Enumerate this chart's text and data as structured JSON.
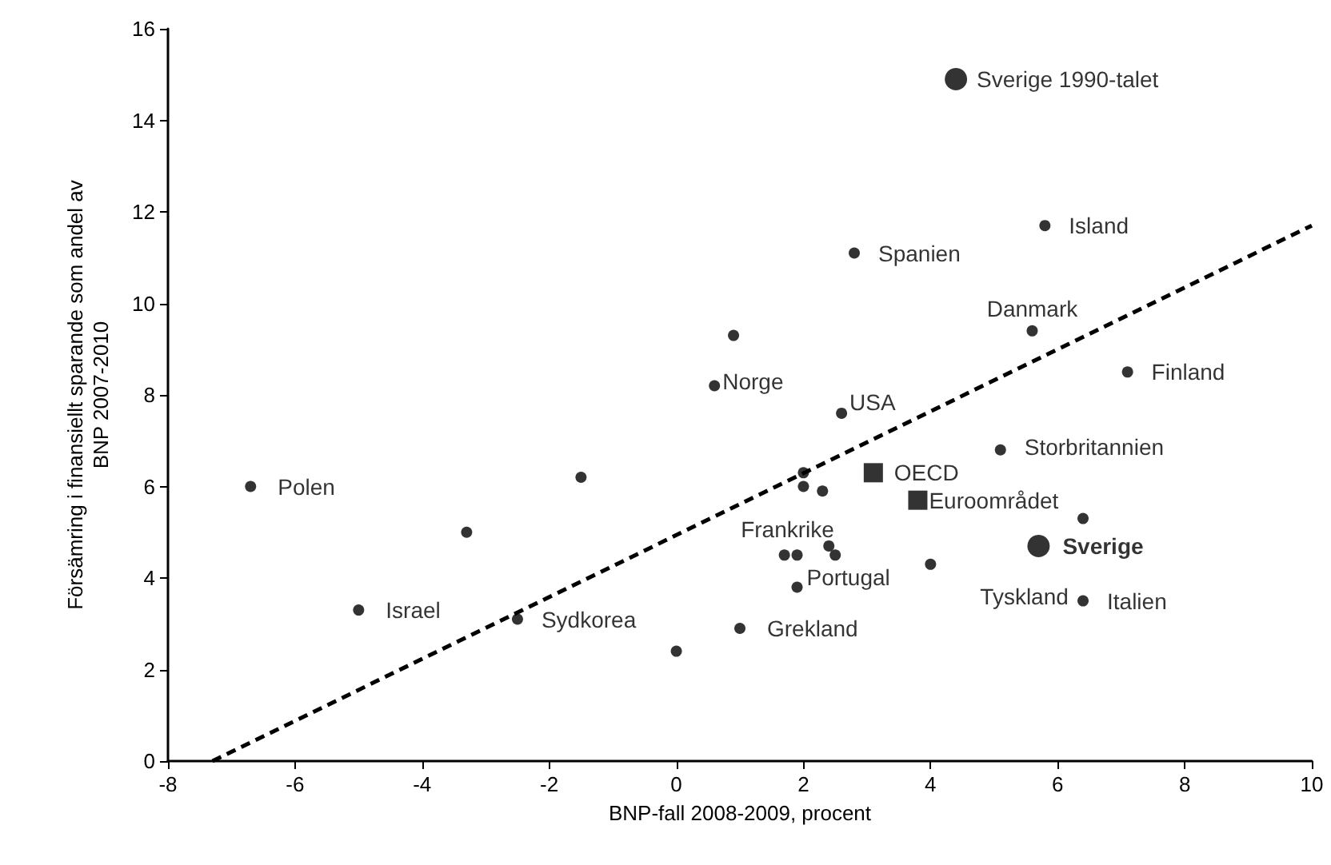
{
  "chart_data": {
    "type": "scatter",
    "xlabel": "BNP-fall 2008-2009, procent",
    "ylabel": "Försämring i finansiellt sparande som andel av BNP 2007-2010",
    "xlim": [
      -8,
      10
    ],
    "xticks": [
      -8,
      -6,
      -4,
      -2,
      0,
      2,
      4,
      6,
      8,
      10
    ],
    "ylim": [
      0,
      16
    ],
    "yticks": [
      0,
      2,
      4,
      6,
      8,
      10,
      12,
      14,
      16
    ],
    "grid": false,
    "series": [
      {
        "marker": "circle",
        "color": "#000000",
        "x": [
          -6.7,
          -5.0,
          -3.3,
          -2.5,
          -1.5,
          0.0,
          0.6,
          0.9,
          1.0,
          1.7,
          1.9,
          1.9,
          2.0,
          2.0,
          2.3,
          2.4,
          2.5,
          2.6,
          2.8,
          4.0,
          5.1,
          5.6,
          5.8,
          6.4,
          6.4,
          7.1
        ],
        "values": [
          6.0,
          3.3,
          5.0,
          3.1,
          6.2,
          2.4,
          8.2,
          9.3,
          2.9,
          4.5,
          4.5,
          3.8,
          6.3,
          6.0,
          5.9,
          4.7,
          4.5,
          7.6,
          11.1,
          4.3,
          6.8,
          9.4,
          11.7,
          5.3,
          3.5,
          8.5
        ]
      },
      {
        "marker": "square",
        "color": "#000000",
        "x": [
          3.1,
          3.8
        ],
        "values": [
          6.3,
          5.7
        ]
      },
      {
        "marker": "circle",
        "color": "#000000",
        "x": [
          4.4,
          5.7
        ],
        "values": [
          14.9,
          4.7
        ]
      },
      {
        "type": "line",
        "marker": "none",
        "line_style": "dashed",
        "color": "#000000",
        "x": [
          -7.3,
          10
        ],
        "values": [
          0,
          11.7
        ]
      }
    ],
    "annotations": [
      {
        "text": "Sverige 1990-talet",
        "x": 4.4,
        "y": 14.9
      },
      {
        "text": "Island",
        "x": 5.8,
        "y": 11.7
      },
      {
        "text": "Spanien",
        "x": 2.8,
        "y": 11.1
      },
      {
        "text": "Danmark",
        "x": 5.6,
        "y": 9.4
      },
      {
        "text": "Finland",
        "x": 7.1,
        "y": 8.5
      },
      {
        "text": "Norge",
        "x": 0.6,
        "y": 8.2
      },
      {
        "text": "USA",
        "x": 2.6,
        "y": 7.6
      },
      {
        "text": "Storbritannien",
        "x": 5.1,
        "y": 6.8
      },
      {
        "text": "OECD",
        "x": 3.1,
        "y": 6.3
      },
      {
        "text": "Euroområdet",
        "x": 3.8,
        "y": 5.7
      },
      {
        "text": "Sverige",
        "x": 5.7,
        "y": 4.7
      },
      {
        "text": "Frankrike",
        "x": 1.9,
        "y": 4.5
      },
      {
        "text": "Portugal",
        "x": 1.9,
        "y": 3.8
      },
      {
        "text": "Tyskland",
        "x": 4.0,
        "y": 4.3
      },
      {
        "text": "Italien",
        "x": 6.4,
        "y": 3.5
      },
      {
        "text": "Grekland",
        "x": 1.0,
        "y": 2.9
      },
      {
        "text": "Polen",
        "x": -6.7,
        "y": 6.0
      },
      {
        "text": "Israel",
        "x": -5.0,
        "y": 3.3
      },
      {
        "text": "Sydkorea",
        "x": -2.5,
        "y": 3.1
      }
    ]
  }
}
